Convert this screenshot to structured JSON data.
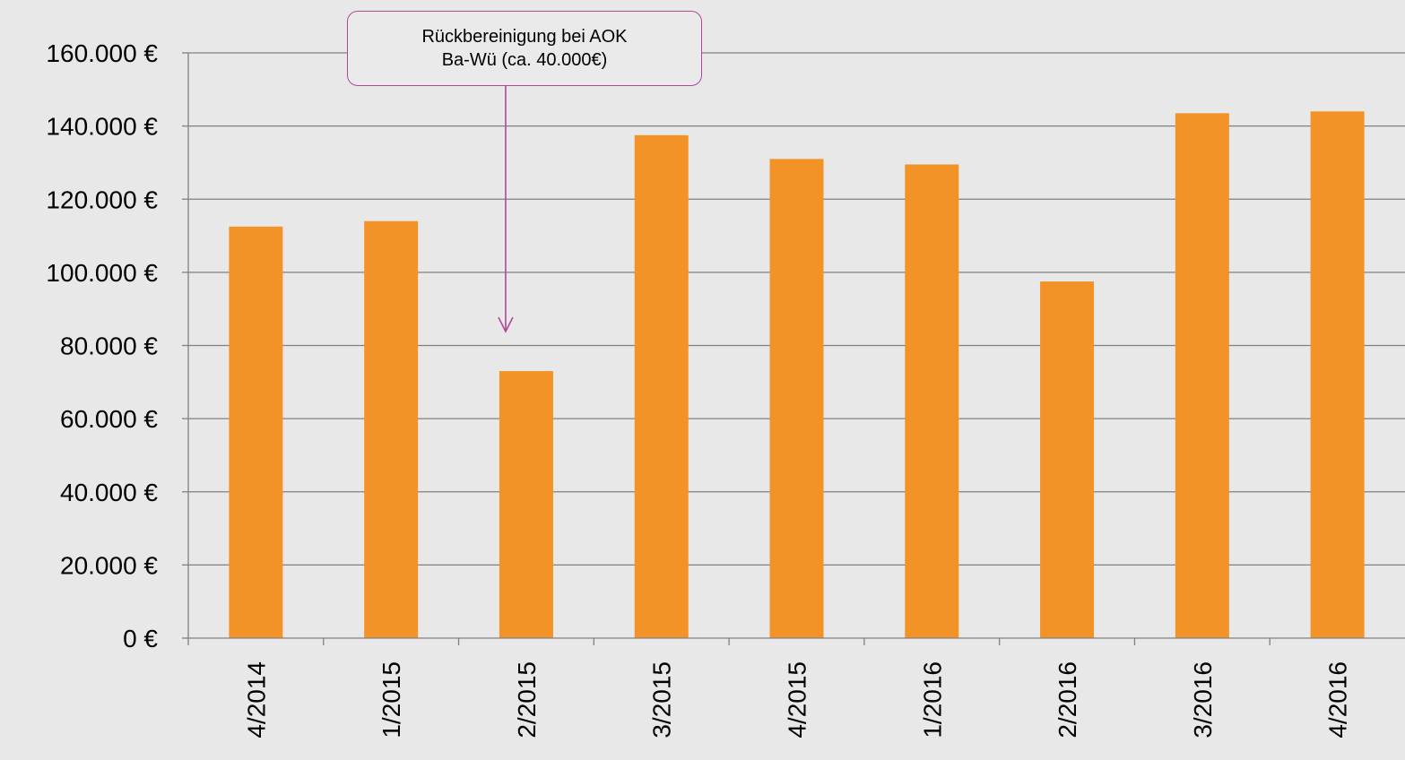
{
  "colors": {
    "background": "#e8e8e8",
    "bar": "#f39327",
    "gridline": "#808080",
    "annotation": "#b0489a"
  },
  "chart_data": {
    "type": "bar",
    "categories": [
      "4/2014",
      "1/2015",
      "2/2015",
      "3/2015",
      "4/2015",
      "1/2016",
      "2/2016",
      "3/2016",
      "4/2016"
    ],
    "values": [
      112500,
      114000,
      73000,
      137500,
      131000,
      129500,
      97500,
      143500,
      144000
    ],
    "ylim": [
      0,
      160000
    ],
    "yticks": [
      0,
      20000,
      40000,
      60000,
      80000,
      100000,
      120000,
      140000,
      160000
    ],
    "ytick_labels": [
      "0 €",
      "20.000 €",
      "40.000 €",
      "60.000 €",
      "80.000 €",
      "100.000 €",
      "120.000 €",
      "140.000 €",
      "160.000 €"
    ],
    "grid": true,
    "legend": "none",
    "annotations": [
      {
        "category": "2/2015",
        "line1": "Rückbereinigung bei AOK",
        "line2": "Ba-Wü (ca. 40.000€)"
      }
    ]
  }
}
